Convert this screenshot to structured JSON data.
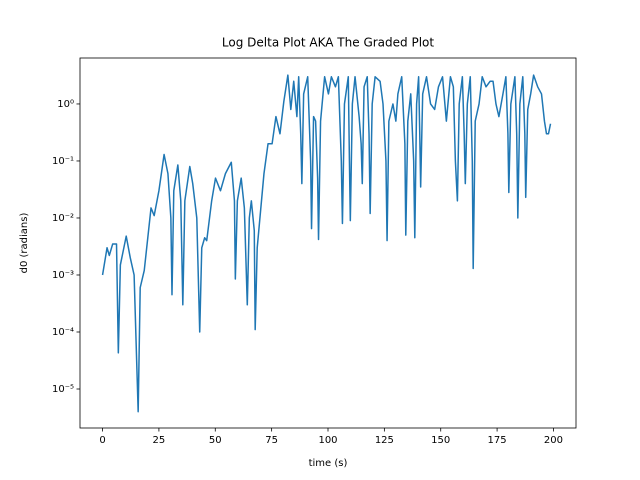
{
  "chart_data": {
    "type": "line",
    "title": "Log Delta Plot AKA The Graded Plot",
    "xlabel": "time (s)",
    "ylabel": "d0 (radians)",
    "color": "#1f77b4",
    "log_y": true,
    "grid": false,
    "xlim": [
      -10,
      210
    ],
    "xticks": [
      0,
      25,
      50,
      75,
      100,
      125,
      150,
      175,
      200
    ],
    "ylim": [
      2.07e-06,
      6.4
    ],
    "yticks": [
      {
        "value": 1e-05,
        "label": "10⁻⁵"
      },
      {
        "value": 0.0001,
        "label": "10⁻⁴"
      },
      {
        "value": 0.001,
        "label": "10⁻³"
      },
      {
        "value": 0.01,
        "label": "10⁻²"
      },
      {
        "value": 0.1,
        "label": "10⁻¹"
      },
      {
        "value": 1,
        "label": "10⁰"
      }
    ],
    "x": [
      0,
      2,
      3,
      4.5,
      6.2,
      7.0,
      7.9,
      10.5,
      12.3,
      14,
      15.8,
      16.7,
      18.5,
      21.5,
      22.9,
      25,
      27.3,
      29,
      30.3,
      30.8,
      31.6,
      33.4,
      34.7,
      35.6,
      36.5,
      38.7,
      40,
      41.8,
      43.1,
      44,
      45.3,
      46.2,
      48.4,
      50.1,
      52.3,
      54.5,
      57.1,
      58.5,
      58.9,
      59.8,
      61.5,
      62.9,
      64.2,
      65.1,
      66,
      67.3,
      67.7,
      68.6,
      71.6,
      73.4,
      75.2,
      76.9,
      78.7,
      80.4,
      82.2,
      83.5,
      84.8,
      86.2,
      87,
      87.9,
      88.4,
      89.2,
      91,
      92.3,
      92.7,
      93.6,
      94.5,
      95.4,
      95.8,
      96.7,
      98.5,
      100.2,
      101.5,
      103.3,
      104.6,
      105.9,
      106.4,
      107.3,
      109,
      109.5,
      109.9,
      110.8,
      112,
      113.8,
      114.7,
      115.2,
      116,
      117.4,
      118.2,
      118.7,
      119.6,
      120.9,
      123.1,
      124.4,
      125.7,
      126.2,
      127,
      128.8,
      130.1,
      131,
      132.7,
      134.1,
      134.5,
      135.4,
      136.7,
      138,
      138.5,
      139.3,
      140.2,
      140.7,
      141.1,
      142,
      143.7,
      145.5,
      147.3,
      149,
      150.8,
      152.5,
      154.3,
      155.6,
      156.5,
      157.4,
      158.2,
      159.6,
      160.4,
      160.9,
      161.8,
      163.1,
      164,
      164.4,
      165.3,
      167,
      168.4,
      170.1,
      171.9,
      173.2,
      174.5,
      175.8,
      177.6,
      178.9,
      179.8,
      180.2,
      181.1,
      182.9,
      183.7,
      184.2,
      185.1,
      186.4,
      187.3,
      187.7,
      188.6,
      189.9,
      191.2,
      193,
      194.7,
      196,
      196.9,
      197.8,
      198.7
    ],
    "values": [
      0.001,
      0.003,
      0.0022,
      0.0035,
      0.0035,
      4.3e-05,
      0.0015,
      0.0048,
      0.002,
      0.001,
      4e-06,
      0.0006,
      0.0012,
      0.015,
      0.011,
      0.03,
      0.13,
      0.06,
      0.01,
      0.00045,
      0.03,
      0.085,
      0.02,
      0.0003,
      0.02,
      0.08,
      0.04,
      0.01,
      0.0001,
      0.003,
      0.0045,
      0.004,
      0.02,
      0.05,
      0.03,
      0.06,
      0.095,
      0.02,
      0.00085,
      0.02,
      0.05,
      0.015,
      0.0003,
      0.01,
      0.02,
      0.006,
      0.00011,
      0.003,
      0.06,
      0.2,
      0.2,
      0.6,
      0.3,
      1.1,
      3.2,
      0.8,
      2.5,
      0.6,
      3,
      0.3,
      0.04,
      1.5,
      3,
      0.1,
      0.0065,
      0.6,
      0.5,
      0.05,
      0.0042,
      0.5,
      3,
      1.5,
      3,
      2,
      3,
      0.1,
      0.008,
      1,
      3,
      0.1,
      0.009,
      1,
      3,
      0.6,
      0.2,
      0.04,
      2,
      3,
      0.3,
      0.012,
      1,
      3,
      2.5,
      1,
      0.1,
      0.004,
      0.5,
      1,
      0.5,
      1.5,
      3,
      0.2,
      0.005,
      0.5,
      1.5,
      0.1,
      0.0045,
      1,
      3,
      0.3,
      0.035,
      1.5,
      3,
      1,
      0.8,
      2,
      3,
      0.5,
      3,
      2,
      0.1,
      0.02,
      1,
      3,
      0.3,
      0.04,
      1,
      3,
      0.1,
      0.0013,
      0.5,
      1,
      3,
      2,
      2.5,
      2.5,
      1,
      0.6,
      1.5,
      3,
      0.3,
      0.028,
      1,
      3,
      0.3,
      0.01,
      1,
      3,
      0.3,
      0.023,
      0.8,
      1.5,
      3.2,
      2,
      1.5,
      0.5,
      0.3,
      0.3,
      0.45
    ]
  }
}
